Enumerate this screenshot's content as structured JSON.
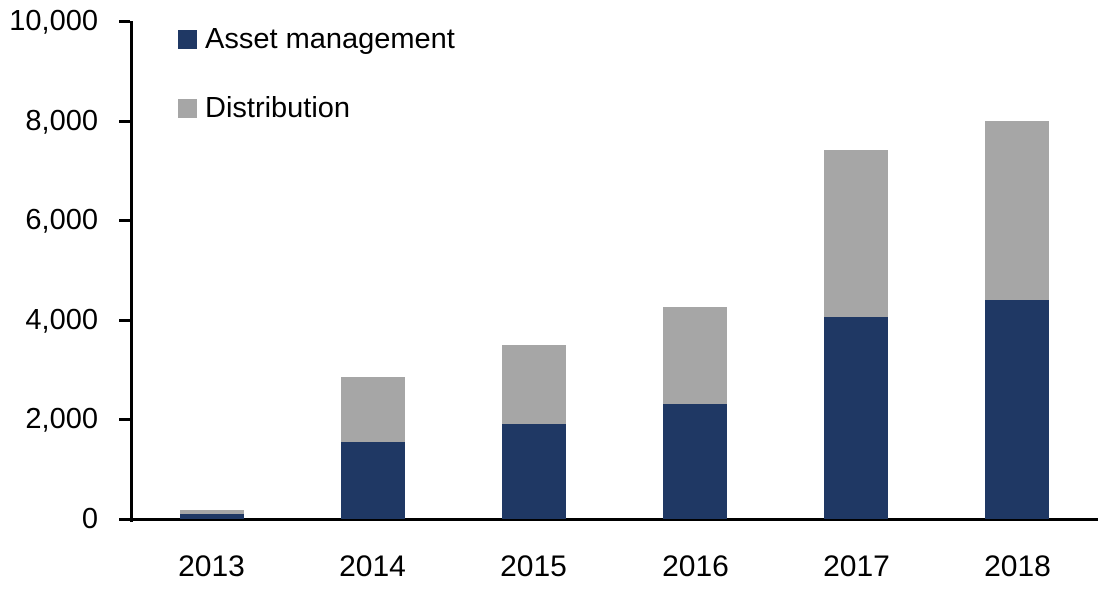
{
  "chart_data": {
    "type": "bar",
    "stacked": true,
    "categories": [
      "2013",
      "2014",
      "2015",
      "2016",
      "2017",
      "2018"
    ],
    "series": [
      {
        "name": "Asset management",
        "color": "#1F3864",
        "values": [
          100,
          1550,
          1900,
          2300,
          4050,
          4400
        ]
      },
      {
        "name": "Distribution",
        "color": "#A6A6A6",
        "values": [
          80,
          1300,
          1600,
          1950,
          3350,
          3600
        ]
      }
    ],
    "ylim": [
      0,
      10000
    ],
    "y_ticks": [
      0,
      2000,
      4000,
      6000,
      8000,
      10000
    ],
    "y_tick_labels": [
      "0",
      "2,000",
      "4,000",
      "6,000",
      "8,000",
      "10,000"
    ],
    "legend_position": "top-left",
    "grid": false,
    "axis_color": "#000000",
    "text_color": "#000000"
  }
}
